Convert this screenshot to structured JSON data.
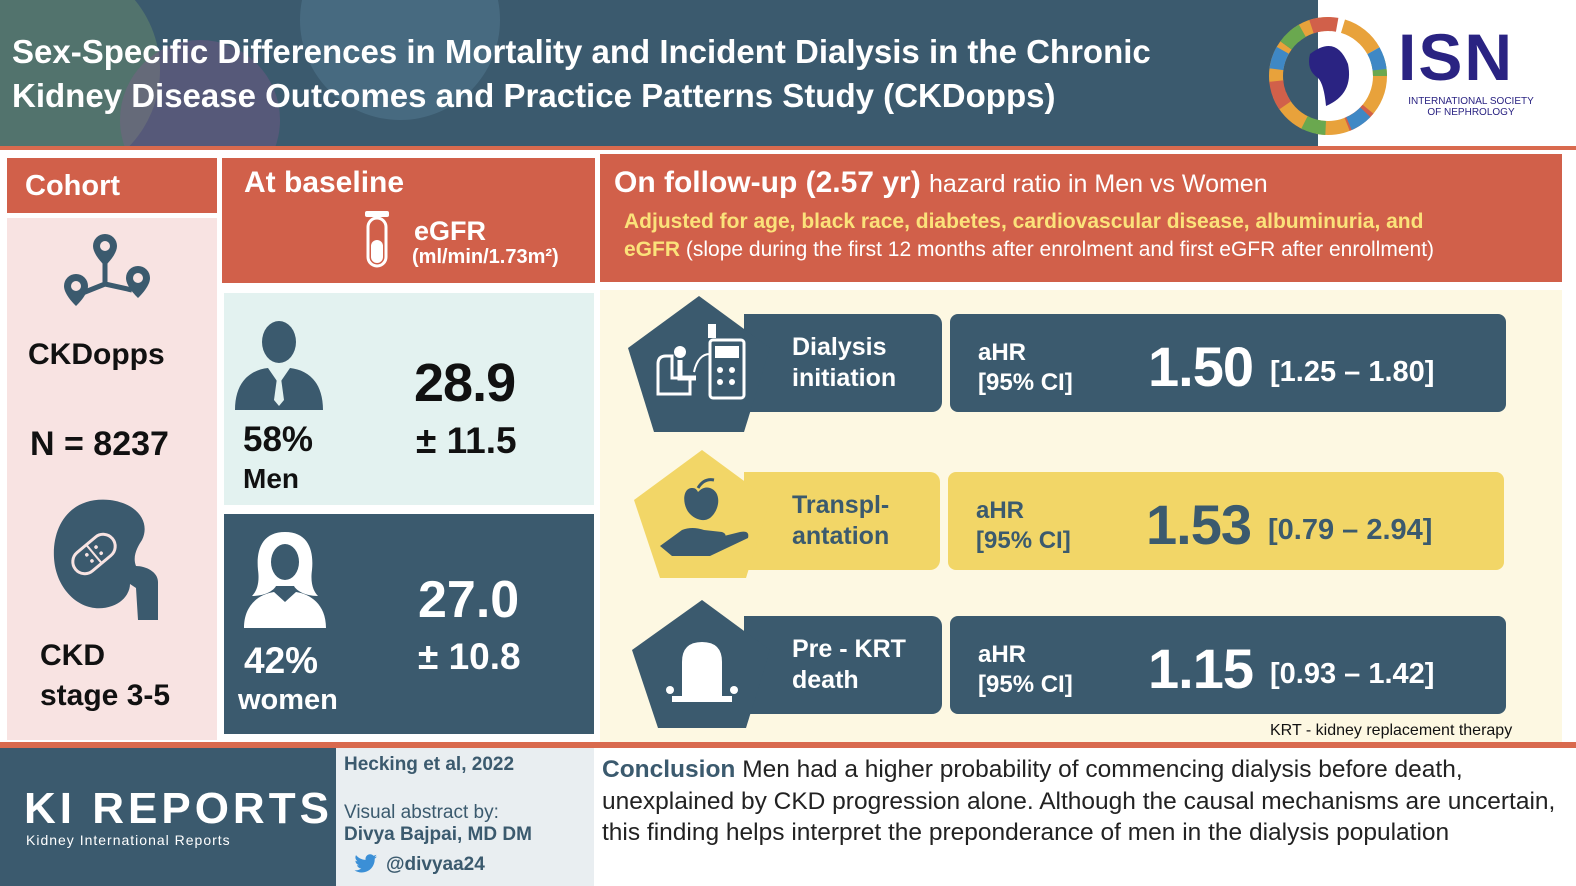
{
  "header": {
    "title_line1": "Sex-Specific Differences in Mortality and Incident Dialysis in the Chronic",
    "title_line2": "Kidney Disease Outcomes and Practice Patterns Study (CKDopps)",
    "isn_logo": "ISN",
    "isn_sub_line1": "INTERNATIONAL SOCIETY",
    "isn_sub_line2": "OF NEPHROLOGY"
  },
  "cohort": {
    "heading": "Cohort",
    "study": "CKDopps",
    "n": "N = 8237",
    "stage_line1": "CKD",
    "stage_line2": "stage 3-5"
  },
  "baseline": {
    "heading": "At baseline",
    "egfr_label": "eGFR",
    "egfr_unit": "(ml/min/1.73m²)",
    "men_pct": "58%",
    "men_label": "Men",
    "men_mean": "28.9",
    "men_sd": "± 11.5",
    "women_pct": "42%",
    "women_label": "women",
    "women_mean": "27.0",
    "women_sd": "± 10.8"
  },
  "followup": {
    "heading_bold": "On follow-up (2.57 yr)",
    "heading_rest": "hazard ratio in Men vs Women",
    "adjust_bold_1": "Adjusted for age, black race, diabetes, cardiovascular disease, albuminuria, and",
    "adjust_bold_2": "eGFR",
    "adjust_rest": "(slope during the first 12 months after enrolment and first eGFR after enrollment)",
    "outcomes": [
      {
        "line1": "Dialysis",
        "line2": "initiation",
        "hr_lab1": "aHR",
        "hr_lab2": "[95% CI]",
        "hr": "1.50",
        "ci": "[1.25 – 1.80]"
      },
      {
        "line1": "Transpl-",
        "line2": "antation",
        "hr_lab1": "aHR",
        "hr_lab2": "[95% CI]",
        "hr": "1.53",
        "ci": "[0.79 – 2.94]"
      },
      {
        "line1": "Pre - KRT",
        "line2": "death",
        "hr_lab1": "aHR",
        "hr_lab2": "[95% CI]",
        "hr": "1.15",
        "ci": "[0.93 – 1.42]"
      }
    ],
    "footnote": "KRT - kidney replacement therapy"
  },
  "footer": {
    "journal_logo": "KI REPORTS",
    "journal_sub": "Kidney International Reports",
    "citation": "Hecking et al, 2022",
    "visual_by": "Visual abstract by:",
    "author": "Divya Bajpai, MD DM",
    "handle": "@divyaa24",
    "conclusion_keyword": "Conclusion",
    "conclusion_text": "Men had a higher probability of commencing dialysis before death, unexplained by CKD progression alone. Although the causal mechanisms are uncertain, this finding helps interpret the preponderance of men in the dialysis population"
  },
  "colors": {
    "navy": "#3b5a6e",
    "coral": "#d1604a",
    "yellow": "#f2d667",
    "isn_blue": "#2a2382"
  }
}
